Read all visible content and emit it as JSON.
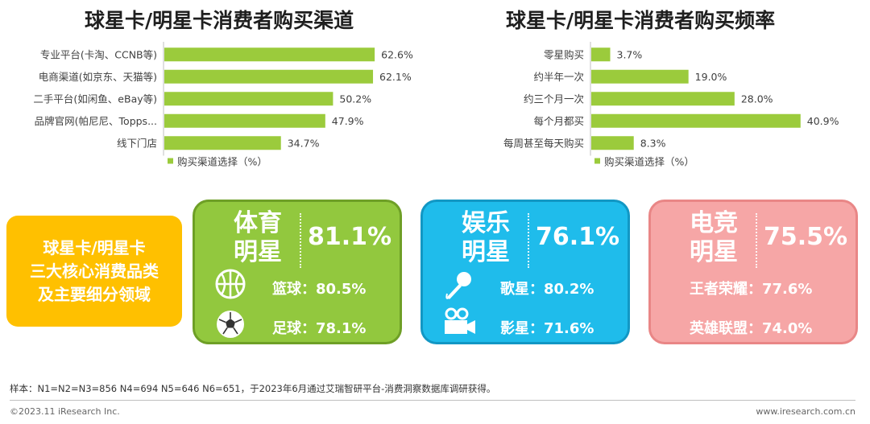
{
  "chart_data": [
    {
      "type": "bar",
      "title": "球星卡/明星卡消费者购买渠道",
      "categories": [
        "专业平台(卡淘、CCNB等)",
        "电商渠道(如京东、天猫等)",
        "二手平台(如闲鱼、eBay等)",
        "品牌官网(帕尼尼、Topps...",
        "线下门店"
      ],
      "values": [
        62.6,
        62.1,
        50.2,
        47.9,
        34.7
      ],
      "value_labels": [
        "62.6%",
        "62.1%",
        "50.2%",
        "47.9%",
        "34.7%"
      ],
      "legend": "购买渠道选择（%）",
      "orientation": "horizontal",
      "color": "#9BCB3C",
      "xlim": [
        0,
        70
      ]
    },
    {
      "type": "bar",
      "title": "球星卡/明星卡消费者购买频率",
      "categories": [
        "零星购买",
        "约半年一次",
        "约三个月一次",
        "每个月都买",
        "每周甚至每天购买"
      ],
      "values": [
        3.7,
        19.0,
        28.0,
        40.9,
        8.3
      ],
      "value_labels": [
        "3.7%",
        "19.0%",
        "28.0%",
        "40.9%",
        "8.3%"
      ],
      "legend": "购买渠道选择（%）",
      "orientation": "horizontal",
      "color": "#9BCB3C",
      "xlim": [
        0,
        45.5
      ]
    }
  ],
  "summary_box": {
    "lines": [
      "球星卡/明星卡",
      "三大核心消费品类",
      "及主要细分领域"
    ],
    "color": "#FFC000"
  },
  "cards": {
    "sports": {
      "title_line1": "体育",
      "title_line2": "明星",
      "percent": "81.1%",
      "item1": "篮球：80.5%",
      "item2": "足球：78.1%",
      "icon1": "basketball-icon",
      "icon2": "soccer-ball-icon",
      "color": "#92C83E"
    },
    "entertainment": {
      "title_line1": "娱乐",
      "title_line2": "明星",
      "percent": "76.1%",
      "item1": "歌星：80.2%",
      "item2": "影星：71.6%",
      "icon1": "microphone-icon",
      "icon2": "movie-camera-icon",
      "color": "#1FBCEB"
    },
    "esports": {
      "title_line1": "电竞",
      "title_line2": "明星",
      "percent": "75.5%",
      "item1": "王者荣耀：77.6%",
      "item2": "英雄联盟：74.0%",
      "color": "#F6A6A6"
    }
  },
  "footer": {
    "note": "样本：N1=N2=N3=856 N4=694 N5=646 N6=651，于2023年6月通过艾瑞智研平台-消费洞察数据库调研获得。",
    "copyright": "©2023.11 iResearch Inc.",
    "website": "www.iresearch.com.cn"
  }
}
